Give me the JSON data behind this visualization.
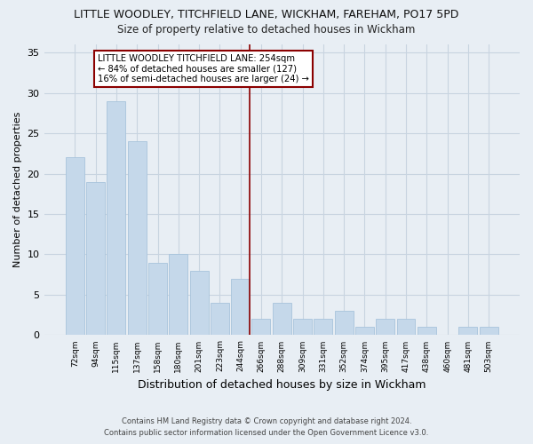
{
  "title": "LITTLE WOODLEY, TITCHFIELD LANE, WICKHAM, FAREHAM, PO17 5PD",
  "subtitle": "Size of property relative to detached houses in Wickham",
  "xlabel": "Distribution of detached houses by size in Wickham",
  "ylabel": "Number of detached properties",
  "bar_color": "#c5d8ea",
  "bar_edge_color": "#a8c4dc",
  "categories": [
    "72sqm",
    "94sqm",
    "115sqm",
    "137sqm",
    "158sqm",
    "180sqm",
    "201sqm",
    "223sqm",
    "244sqm",
    "266sqm",
    "288sqm",
    "309sqm",
    "331sqm",
    "352sqm",
    "374sqm",
    "395sqm",
    "417sqm",
    "438sqm",
    "460sqm",
    "481sqm",
    "503sqm"
  ],
  "values": [
    22,
    19,
    29,
    24,
    9,
    10,
    8,
    4,
    7,
    2,
    4,
    2,
    2,
    3,
    1,
    2,
    2,
    1,
    0,
    1,
    1
  ],
  "ylim": [
    0,
    36
  ],
  "yticks": [
    0,
    5,
    10,
    15,
    20,
    25,
    30,
    35
  ],
  "reference_line_index": 8,
  "reference_line_color": "#8b0000",
  "annotation_line1": "LITTLE WOODLEY TITCHFIELD LANE: 254sqm",
  "annotation_line2": "← 84% of detached houses are smaller (127)",
  "annotation_line3": "16% of semi-detached houses are larger (24) →",
  "footer_line1": "Contains HM Land Registry data © Crown copyright and database right 2024.",
  "footer_line2": "Contains public sector information licensed under the Open Government Licence v3.0.",
  "background_color": "#e8eef4",
  "grid_color": "#c8d4e0",
  "title_fontsize": 9,
  "subtitle_fontsize": 8.5
}
